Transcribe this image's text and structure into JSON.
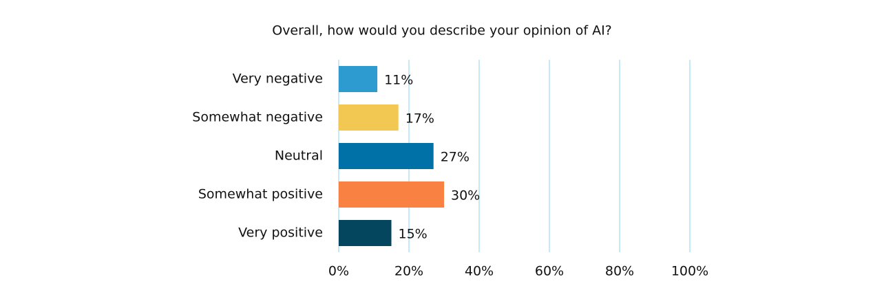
{
  "chart_data": {
    "type": "bar",
    "orientation": "horizontal",
    "title": "Overall, how would you describe your opinion of AI?",
    "categories": [
      "Very negative",
      "Somewhat negative",
      "Neutral",
      "Somewhat positive",
      "Very positive"
    ],
    "values": [
      11,
      17,
      27,
      30,
      15
    ],
    "value_labels": [
      "11%",
      "17%",
      "27%",
      "30%",
      "15%"
    ],
    "colors": [
      "#2e9bd0",
      "#f2c752",
      "#0071a7",
      "#f98141",
      "#03465e"
    ],
    "xlim": [
      0,
      100
    ],
    "xticks": [
      {
        "value": 0,
        "label": "0%"
      },
      {
        "value": 20,
        "label": "20%"
      },
      {
        "value": 40,
        "label": "40%"
      },
      {
        "value": 60,
        "label": "60%"
      },
      {
        "value": 80,
        "label": "80%"
      },
      {
        "value": 100,
        "label": "100%"
      }
    ],
    "grid": true
  }
}
